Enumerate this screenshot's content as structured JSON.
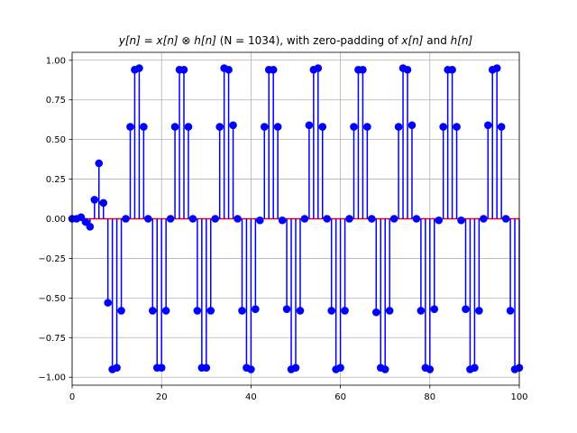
{
  "chart_data": {
    "type": "stem",
    "title_parts": {
      "y_n": "y[n]",
      "equals": " = ",
      "x_n": "x[n]",
      "conv_op": " ⊗ ",
      "h_n": "h[n]",
      "n_note": " (N = 1034), with zero-padding of ",
      "x_n2": "x[n]",
      "and_word": " and ",
      "h_n2": "h[n]"
    },
    "xlabel": "",
    "ylabel": "",
    "xlim": [
      0,
      100
    ],
    "ylim": [
      -1.05,
      1.05
    ],
    "xticks": [
      0,
      20,
      40,
      60,
      80,
      100
    ],
    "xtick_labels": [
      "0",
      "20",
      "40",
      "60",
      "80",
      "100"
    ],
    "yticks": [
      -1.0,
      -0.75,
      -0.5,
      -0.25,
      0.0,
      0.25,
      0.5,
      0.75,
      1.0
    ],
    "ytick_labels": [
      "−1.00",
      "−0.75",
      "−0.50",
      "−0.25",
      "0.00",
      "0.25",
      "0.50",
      "0.75",
      "1.00"
    ],
    "grid": true,
    "colors": {
      "stem": "#0000ff",
      "marker": "#0000ff",
      "baseline": "#ff0000",
      "grid": "#b0b0b0"
    },
    "x": [
      0,
      1,
      2,
      3,
      4,
      5,
      6,
      7,
      8,
      9,
      10,
      11,
      12,
      13,
      14,
      15,
      16,
      17,
      18,
      19,
      20,
      21,
      22,
      23,
      24,
      25,
      26,
      27,
      28,
      29,
      30,
      31,
      32,
      33,
      34,
      35,
      36,
      37,
      38,
      39,
      40,
      41,
      42,
      43,
      44,
      45,
      46,
      47,
      48,
      49,
      50,
      51,
      52,
      53,
      54,
      55,
      56,
      57,
      58,
      59,
      60,
      61,
      62,
      63,
      64,
      65,
      66,
      67,
      68,
      69,
      70,
      71,
      72,
      73,
      74,
      75,
      76,
      77,
      78,
      79,
      80,
      81,
      82,
      83,
      84,
      85,
      86,
      87,
      88,
      89,
      90,
      91,
      92,
      93,
      94,
      95,
      96,
      97,
      98,
      99,
      100
    ],
    "values": [
      0.0,
      0.0,
      0.01,
      -0.02,
      -0.05,
      0.12,
      0.35,
      0.1,
      -0.53,
      -0.95,
      -0.94,
      -0.58,
      0.0,
      0.58,
      0.94,
      0.95,
      0.58,
      0.0,
      -0.58,
      -0.94,
      -0.94,
      -0.58,
      0.0,
      0.58,
      0.94,
      0.94,
      0.58,
      0.0,
      -0.58,
      -0.94,
      -0.94,
      -0.58,
      0.0,
      0.58,
      0.95,
      0.94,
      0.59,
      0.0,
      -0.58,
      -0.94,
      -0.95,
      -0.57,
      -0.01,
      0.58,
      0.94,
      0.94,
      0.58,
      -0.01,
      -0.57,
      -0.95,
      -0.94,
      -0.58,
      0.0,
      0.59,
      0.94,
      0.95,
      0.58,
      0.0,
      -0.58,
      -0.95,
      -0.94,
      -0.58,
      0.0,
      0.58,
      0.94,
      0.94,
      0.58,
      0.0,
      -0.59,
      -0.94,
      -0.95,
      -0.58,
      0.0,
      0.58,
      0.95,
      0.94,
      0.59,
      0.0,
      -0.58,
      -0.94,
      -0.95,
      -0.57,
      -0.01,
      0.58,
      0.94,
      0.94,
      0.58,
      -0.01,
      -0.57,
      -0.95,
      -0.94,
      -0.58,
      0.0,
      0.59,
      0.94,
      0.95,
      0.58,
      0.0,
      -0.58,
      -0.95,
      -0.94
    ]
  }
}
